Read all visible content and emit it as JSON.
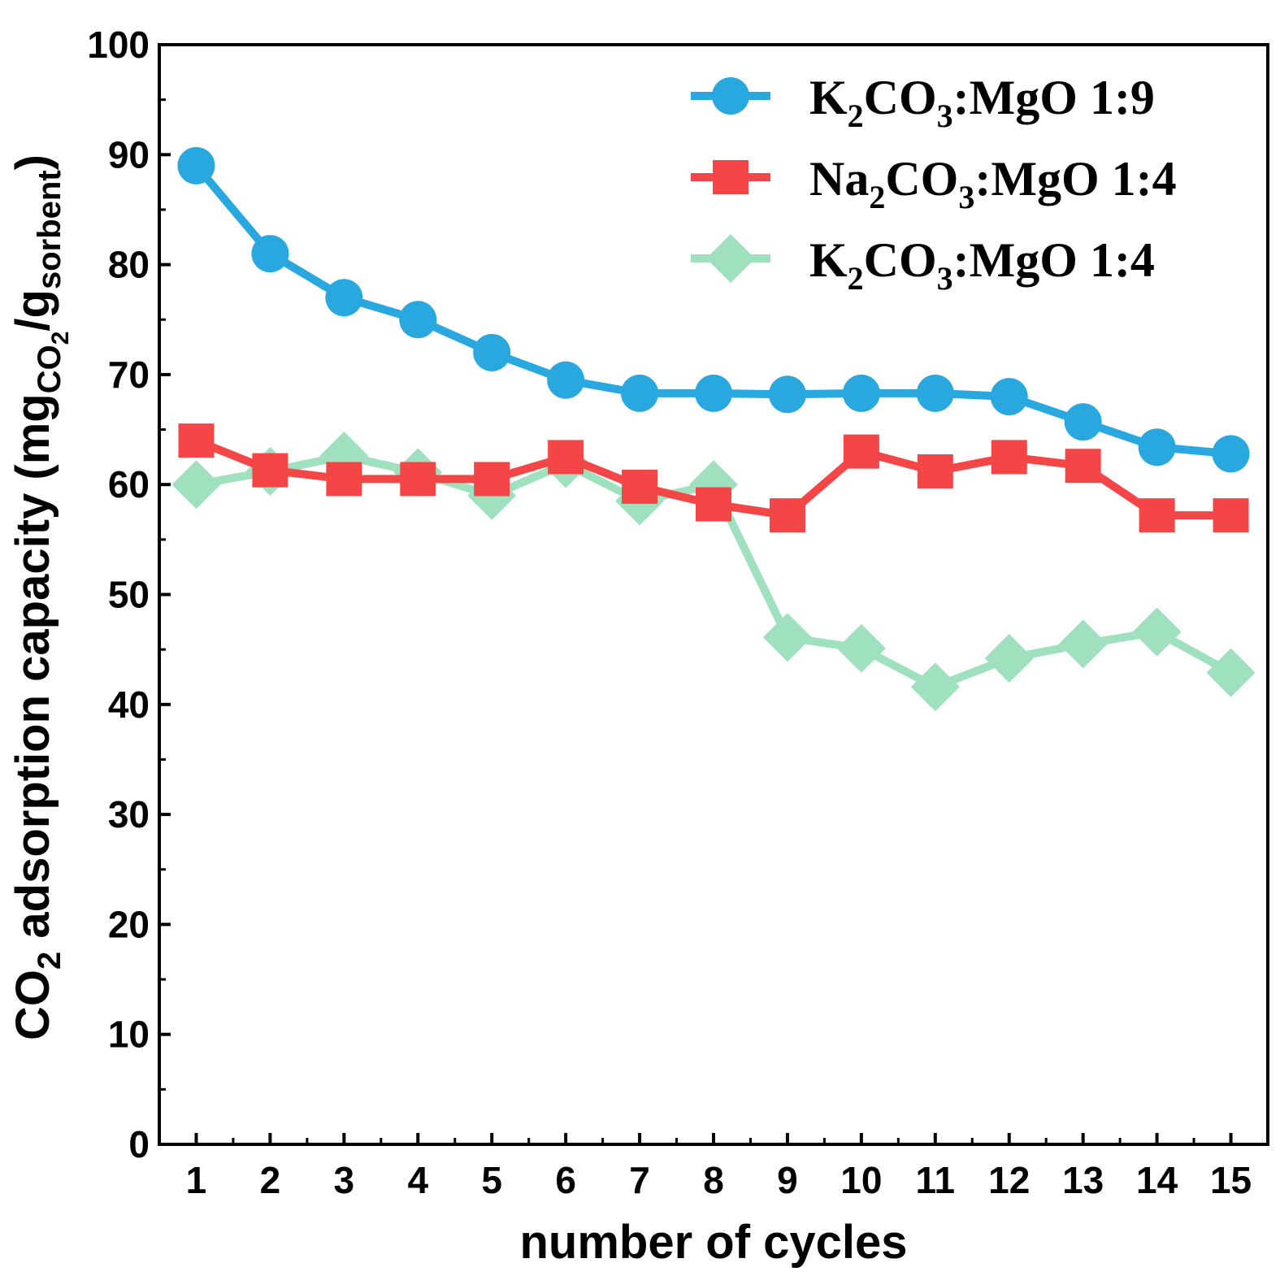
{
  "chart_data": {
    "type": "line",
    "xlabel": "number of cycles",
    "ylabel": {
      "main": "CO",
      "main_sub": "2",
      "rest": " adsorption capacity (mg",
      "sub1": "CO",
      "sub1_sub": "2",
      "slash": "/g",
      "sub2": "sorbent",
      "close": ")"
    },
    "xlim": [
      0.5,
      15.5
    ],
    "ylim": [
      0,
      100
    ],
    "x": [
      1,
      2,
      3,
      4,
      5,
      6,
      7,
      8,
      9,
      10,
      11,
      12,
      13,
      14,
      15
    ],
    "yticks": [
      0,
      10,
      20,
      30,
      40,
      50,
      60,
      70,
      80,
      90,
      100
    ],
    "legend_position": "top-right",
    "series": [
      {
        "name": "K2CO3:MgO 1:9",
        "label_parts": [
          "K",
          "2",
          "CO",
          "3",
          ":MgO 1:9"
        ],
        "color": "#29a8e0",
        "marker": "circle",
        "values": [
          89,
          81,
          77,
          75,
          72,
          69.5,
          68.3,
          68.3,
          68.2,
          68.3,
          68.3,
          68,
          65.7,
          63.4,
          62.8
        ]
      },
      {
        "name": "Na2CO3:MgO 1:4",
        "label_parts": [
          "Na",
          "2",
          "CO",
          "3",
          ":MgO 1:4"
        ],
        "color": "#f44646",
        "marker": "square",
        "values": [
          64,
          61.3,
          60.5,
          60.5,
          60.5,
          62.5,
          59.8,
          58.2,
          57.2,
          63,
          61.2,
          62.5,
          61.7,
          57.2,
          57.2
        ]
      },
      {
        "name": "K2CO3:MgO 1:4",
        "label_parts": [
          "K",
          "2",
          "CO",
          "3",
          ":MgO 1:4"
        ],
        "color": "#9fe1bf",
        "marker": "diamond",
        "values": [
          60,
          61.2,
          62.6,
          61.1,
          59,
          61.9,
          58.5,
          60,
          46.1,
          45.1,
          41.6,
          44.2,
          45.5,
          46.6,
          42.9
        ]
      }
    ]
  }
}
